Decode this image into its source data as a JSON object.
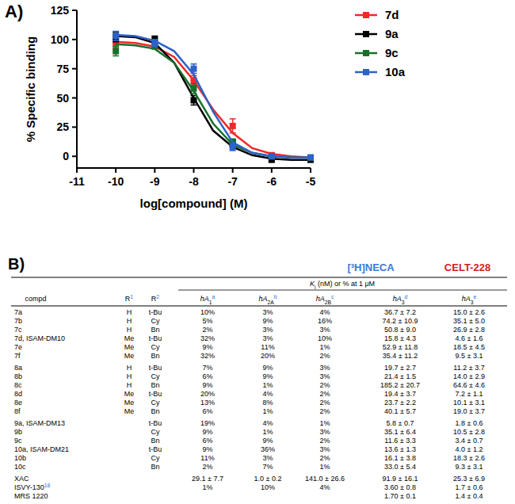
{
  "panels": [
    "A)",
    "B)"
  ],
  "chart_data": {
    "type": "line",
    "x_label": "log[compound] (M)",
    "y_label": "% Specific binding",
    "xlim": [
      -11,
      -5
    ],
    "xticks": [
      -11,
      -10,
      -9,
      -8,
      -7,
      -6,
      -5
    ],
    "ylim": [
      -10,
      125
    ],
    "yticks": [
      0,
      25,
      50,
      75,
      100,
      125
    ],
    "legend": "top-right",
    "x": [
      -10,
      -9,
      -8,
      -7,
      -6,
      -5
    ],
    "fit_x": [
      -10,
      -9.5,
      -9,
      -8.5,
      -8,
      -7.5,
      -7,
      -6.5,
      -6,
      -5.5,
      -5
    ],
    "series": [
      {
        "name": "7d",
        "color": "#f02828",
        "marker": "square",
        "values": [
          97,
          95,
          65,
          26,
          1,
          -2
        ],
        "errors": [
          4,
          3,
          4,
          6,
          2,
          2
        ],
        "fit": [
          98,
          97,
          94,
          85,
          65,
          40,
          20,
          7,
          2,
          0,
          -1
        ]
      },
      {
        "name": "9a",
        "color": "#000000",
        "marker": "square",
        "values": [
          102,
          100,
          48,
          11,
          -3,
          -3
        ],
        "errors": [
          4,
          3,
          4,
          3,
          1,
          1
        ],
        "fit": [
          103,
          102,
          97,
          80,
          50,
          22,
          8,
          1,
          -2,
          -3,
          -3
        ]
      },
      {
        "name": "9c",
        "color": "#16702a",
        "marker": "square",
        "values": [
          90,
          95,
          58,
          12,
          0,
          -1
        ],
        "errors": [
          4,
          3,
          4,
          3,
          1,
          1
        ],
        "fit": [
          96,
          95,
          92,
          80,
          56,
          28,
          10,
          3,
          0,
          -1,
          -1
        ]
      },
      {
        "name": "10a",
        "color": "#2d63c8",
        "marker": "square",
        "values": [
          103,
          97,
          75,
          8,
          0,
          -1
        ],
        "errors": [
          4,
          3,
          4,
          3,
          1,
          1
        ],
        "fit": [
          104,
          103,
          99,
          90,
          70,
          38,
          12,
          3,
          0,
          -1,
          -1
        ]
      }
    ]
  },
  "table": {
    "radioligands": [
      {
        "text": "[³H]NECA",
        "color": "#3a78d8"
      },
      {
        "text": "CELT-228",
        "color": "#d42020"
      }
    ],
    "group_header": {
      "text": "K",
      "sub": "i",
      "after": " (nM) or % at 1 μM"
    },
    "columns": [
      {
        "text": "compd"
      },
      {
        "text": "R",
        "sup": "1"
      },
      {
        "text": "R",
        "sup": "2"
      },
      {
        "text": "hA",
        "sub": "1",
        "sup": "a"
      },
      {
        "text": "hA",
        "sub": "2A",
        "sup": "b"
      },
      {
        "text": "hA",
        "sub": "2B",
        "sup": "c"
      },
      {
        "text": "hA",
        "sub": "3",
        "sup": "d"
      },
      {
        "text": "hA",
        "sub": "3",
        "sup": "e"
      }
    ],
    "rows": [
      {
        "compd": "7a",
        "cells": [
          "H",
          "t-Bu",
          "10%",
          "3%",
          "4%",
          "36.7 ± 7.2",
          "15.0 ± 2.6"
        ]
      },
      {
        "compd": "7b",
        "cells": [
          "H",
          "Cy",
          "5%",
          "9%",
          "16%",
          "74.2 ± 10.9",
          "35.1 ± 5.0"
        ]
      },
      {
        "compd": "7c",
        "cells": [
          "H",
          "Bn",
          "2%",
          "3%",
          "3%",
          "50.8 ± 9.0",
          "26.9 ± 2.8"
        ]
      },
      {
        "compd": "7d, ISAM-DM10",
        "cells": [
          "Me",
          "t-Bu",
          "32%",
          "3%",
          "10%",
          "15.8 ± 4.3",
          "4.6 ± 1.6"
        ]
      },
      {
        "compd": "7e",
        "cells": [
          "Me",
          "Cy",
          "9%",
          "11%",
          "1%",
          "52.9 ± 11.8",
          "18.5 ± 4.5"
        ]
      },
      {
        "compd": "7f",
        "cells": [
          "Me",
          "Bn",
          "32%",
          "20%",
          "2%",
          "35.4 ± 11.2",
          "9.5 ± 3.1"
        ]
      },
      {
        "compd": "8a",
        "cells": [
          "H",
          "t-Bu",
          "7%",
          "9%",
          "3%",
          "19.7 ± 2.7",
          "11.2 ± 3.7"
        ]
      },
      {
        "compd": "8b",
        "cells": [
          "H",
          "Cy",
          "6%",
          "9%",
          "3%",
          "21.4 ± 1.5",
          "14.0 ± 2.9"
        ]
      },
      {
        "compd": "8c",
        "cells": [
          "H",
          "Bn",
          "9%",
          "1%",
          "2%",
          "185.2 ± 20.7",
          "64.6 ± 4.6"
        ]
      },
      {
        "compd": "8d",
        "cells": [
          "Me",
          "t-Bu",
          "20%",
          "4%",
          "2%",
          "19.4 ± 3.7",
          "7.2 ± 1.1"
        ]
      },
      {
        "compd": "8e",
        "cells": [
          "Me",
          "Cy",
          "13%",
          "8%",
          "2%",
          "23.7 ± 2.2",
          "10.1 ± 3.1"
        ]
      },
      {
        "compd": "8f",
        "cells": [
          "Me",
          "Bn",
          "6%",
          "1%",
          "2%",
          "40.1 ± 5.7",
          "19.0 ± 3.7"
        ]
      },
      {
        "compd": "9a, ISAM-DM13",
        "cells": [
          null,
          "t-Bu",
          "19%",
          "4%",
          "1%",
          "5.8 ± 0.7",
          "1.8 ± 0.6"
        ]
      },
      {
        "compd": "9b",
        "cells": [
          null,
          "Cy",
          "9%",
          "1%",
          "3%",
          "35.1 ± 6.4",
          "10.5 ± 2.8"
        ]
      },
      {
        "compd": "9c",
        "cells": [
          null,
          "Bn",
          "6%",
          "9%",
          "2%",
          "11.6 ± 3.3",
          "3.4 ± 0.7"
        ]
      },
      {
        "compd": "10a, ISAM-DM21",
        "cells": [
          null,
          "t-Bu",
          "9%",
          "36%",
          "3%",
          "13.6 ± 1.3",
          "4.0 ± 1.2"
        ]
      },
      {
        "compd": "10b",
        "cells": [
          null,
          "Cy",
          "11%",
          "3%",
          "2%",
          "16.1 ± 3.8",
          "18.3 ± 2.6"
        ]
      },
      {
        "compd": "10c",
        "cells": [
          null,
          "Bn",
          "2%",
          "7%",
          "1%",
          "33.0 ± 5.4",
          "9.3 ± 3.1"
        ]
      },
      {
        "compd": "XAC",
        "cells": [
          null,
          null,
          "29.1 ± 7.7",
          "1.0 ± 0.2",
          "141.0 ± 26.6",
          "91.9 ± 16.1",
          "25.3 ± 6.9"
        ]
      },
      {
        "compd": "ISVY-130",
        "ref": "18",
        "cells": [
          null,
          null,
          "1%",
          "10%",
          "4%",
          "3.60 ± 0.8",
          "1.7 ± 0.6"
        ]
      },
      {
        "compd": "MRS 1220",
        "cells": [
          null,
          null,
          null,
          null,
          null,
          "1.70 ± 0.1",
          "1.4 ± 0.4"
        ]
      }
    ]
  }
}
